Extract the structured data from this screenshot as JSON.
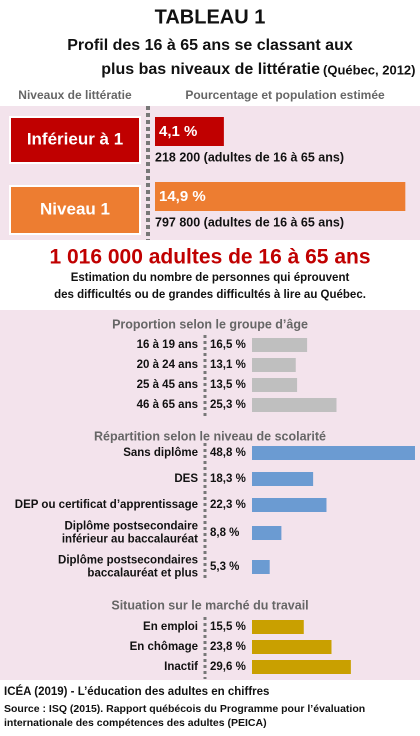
{
  "header": {
    "title": "TABLEAU 1",
    "subtitle_lines": [
      "Profil des 16 à 65 ans se classant aux",
      "plus bas niveaux de littératie"
    ],
    "subtitle_note": "(Québec, 2012)"
  },
  "chart_data": [
    {
      "type": "bar",
      "orientation": "horizontal",
      "column_labels": [
        "Niveaux de littératie",
        "Pourcentage et population estimée"
      ],
      "categories": [
        "Inférieur à 1",
        "Niveau 1"
      ],
      "values": [
        4.1,
        14.9
      ],
      "value_labels": [
        "4,1 %",
        "14,9 %"
      ],
      "colors": [
        "#c00000",
        "#ed7d31"
      ],
      "annotations": [
        "218 200 (adultes de 16 à 65 ans)",
        "797 800 (adultes de 16 à 65 ans)"
      ],
      "xlim": [
        0,
        15
      ]
    },
    {
      "type": "bar",
      "orientation": "horizontal",
      "title": "Proportion selon le groupe d’âge",
      "categories": [
        [
          "16 à 19 ans"
        ],
        [
          "20 à 24 ans"
        ],
        [
          "25 à 45 ans"
        ],
        [
          "46 à 65 ans"
        ]
      ],
      "values": [
        16.5,
        13.1,
        13.5,
        25.3
      ],
      "value_labels": [
        "16,5 %",
        "13,1 %",
        "13,5 %",
        "25,3 %"
      ],
      "color": "#bfbfbf",
      "xlim": [
        0,
        50
      ]
    },
    {
      "type": "bar",
      "orientation": "horizontal",
      "title": "Répartition selon le niveau de scolarité",
      "categories": [
        [
          "Sans diplôme"
        ],
        [
          "DES"
        ],
        [
          "DEP ou certificat d’apprentissage"
        ],
        [
          "Diplôme postsecondaire",
          "inférieur au baccalauréat"
        ],
        [
          "Diplôme postsecondaires",
          "baccalauréat et plus"
        ]
      ],
      "values": [
        48.8,
        18.3,
        22.3,
        8.8,
        5.3
      ],
      "value_labels": [
        "48,8 %",
        "18,3 %",
        "22,3 %",
        "8,8 %",
        "5,3 %"
      ],
      "color": "#6b9bd2",
      "xlim": [
        0,
        50
      ]
    },
    {
      "type": "bar",
      "orientation": "horizontal",
      "title": "Situation sur le marché du travail",
      "categories": [
        [
          "En emploi"
        ],
        [
          "En chômage"
        ],
        [
          "Inactif"
        ]
      ],
      "values": [
        15.5,
        23.8,
        29.6
      ],
      "value_labels": [
        "15,5 %",
        "23,8 %",
        "29,6 %"
      ],
      "color": "#c9a000",
      "xlim": [
        0,
        50
      ]
    }
  ],
  "total": {
    "headline": "1 016 000 adultes de 16 à 65 ans",
    "lines": [
      "Estimation du nombre de personnes qui éprouvent",
      "des difficultés ou de grandes difficultés à lire au Québec."
    ]
  },
  "footer": {
    "lines": [
      "ICÉA (2019) - L’éducation des adultes en chiffres",
      "Source : ISQ (2015). Rapport québécois du Programme pour l’évaluation",
      "internationale des compétences des adultes (PEICA)"
    ]
  }
}
